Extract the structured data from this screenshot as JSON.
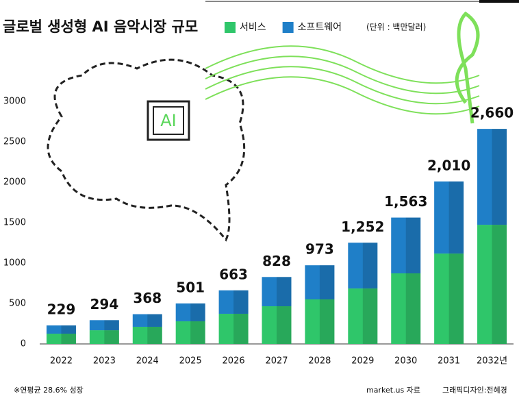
{
  "chart_data": {
    "type": "stacked_bar",
    "title": "글로벌 생성형 AI 음악시장 규모",
    "unit_note": "(단위 : 백만달러)",
    "categories": [
      "2022",
      "2023",
      "2024",
      "2025",
      "2026",
      "2027",
      "2028",
      "2029",
      "2030",
      "2031",
      "2032년"
    ],
    "series": [
      {
        "name": "서비스",
        "color": "#2fc66a",
        "values": [
          127,
          169,
          212,
          280,
          373,
          466,
          551,
          686,
          873,
          1118,
          1474
        ]
      },
      {
        "name": "소프트웨어",
        "color": "#1f7fc8",
        "values": [
          102,
          125,
          156,
          221,
          290,
          362,
          422,
          566,
          690,
          892,
          1186
        ]
      }
    ],
    "totals": {
      "values": [
        229,
        294,
        368,
        501,
        663,
        828,
        973,
        1252,
        1563,
        2010,
        2660
      ],
      "value_labels": [
        "229",
        "294",
        "368",
        "501",
        "663",
        "828",
        "973",
        "1,252",
        "1,563",
        "2,010",
        "2,660"
      ]
    },
    "ylim": [
      0,
      3000
    ],
    "yticks": [
      0,
      500,
      1000,
      1500,
      2000,
      2500,
      3000
    ],
    "illustration_label": "AI",
    "footnote": "※연평균 28.6% 성장",
    "source": "market.us 자료",
    "credit": "그래픽디자인:전혜경"
  }
}
